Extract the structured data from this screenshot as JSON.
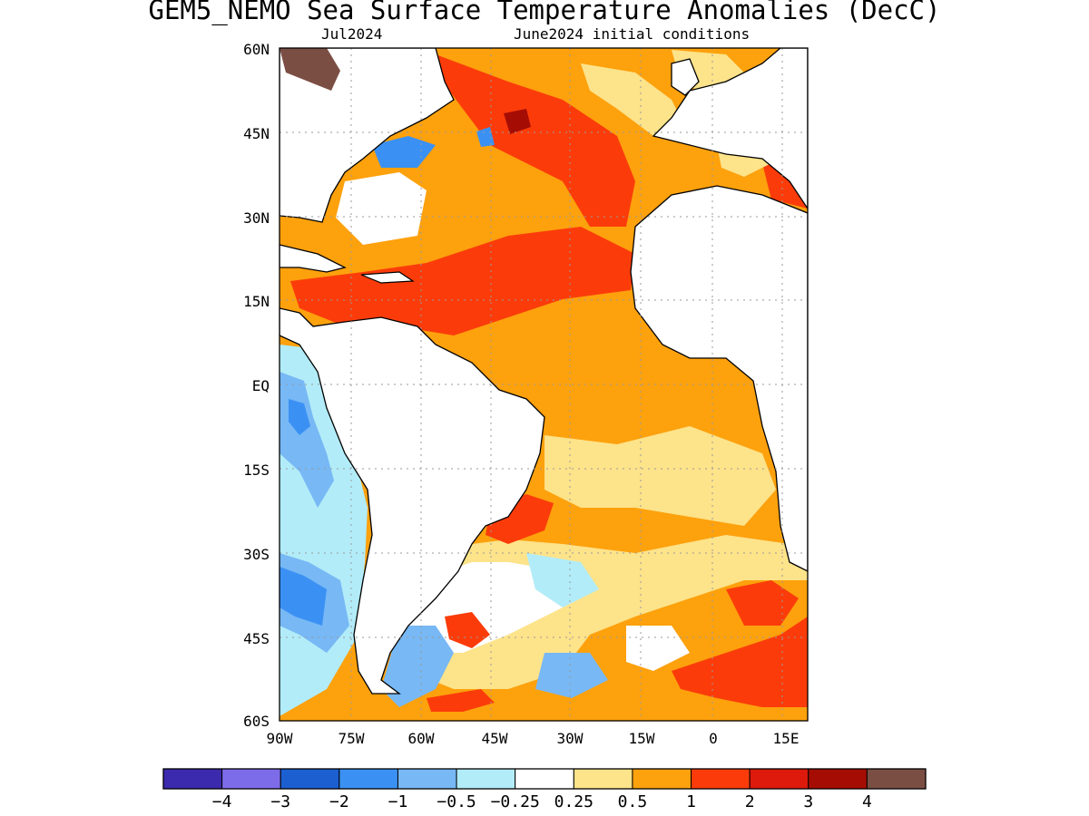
{
  "title": "GEM5_NEMO Sea Surface Temperature Anomalies (DecC)",
  "subtitle_left": "Jul2024",
  "subtitle_right": "June2024 initial conditions",
  "map": {
    "lat_labels": [
      "60N",
      "45N",
      "30N",
      "15N",
      "EQ",
      "15S",
      "30S",
      "45S",
      "60S"
    ],
    "lon_labels": [
      "90W",
      "75W",
      "60W",
      "45W",
      "30W",
      "15W",
      "0",
      "15E"
    ],
    "colors": {
      "land": "#ffffff",
      "coast": "#000000",
      "grid": "#9a9a9a"
    }
  },
  "colorbar": {
    "colors": [
      "#3b2aad",
      "#7d6ce9",
      "#1c5fd1",
      "#3b91f3",
      "#77b8f5",
      "#b2ecf8",
      "#ffffff",
      "#fde38a",
      "#fda10d",
      "#fb3c0a",
      "#dd1a0c",
      "#a50d04",
      "#7b4e44"
    ],
    "labels": [
      "−4",
      "−3",
      "−2",
      "−1",
      "−0.5",
      "−0.25",
      "0.25",
      "0.5",
      "1",
      "2",
      "3",
      "4"
    ]
  }
}
